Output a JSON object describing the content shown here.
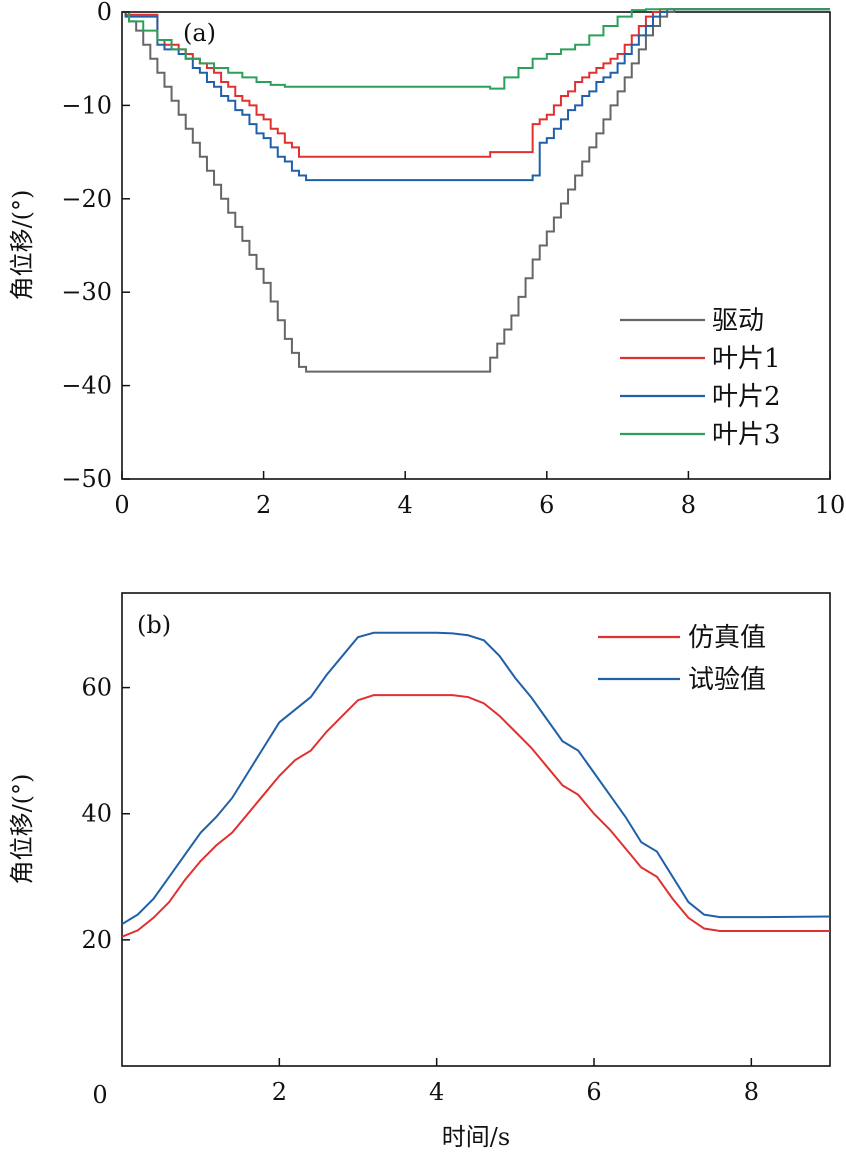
{
  "chart_data": [
    {
      "type": "line",
      "panel_label": "(a)",
      "xlabel": "",
      "ylabel": "角位移/(°)",
      "xlim": [
        0,
        10
      ],
      "ylim": [
        -50,
        0
      ],
      "xticks": [
        0,
        2,
        4,
        6,
        8,
        10
      ],
      "yticks": [
        0,
        -10,
        -20,
        -30,
        -40,
        -50
      ],
      "ytick_labels": [
        "0",
        "−10",
        "−20",
        "−30",
        "−40",
        "−50"
      ],
      "legend_position": "lower-right",
      "series": [
        {
          "name": "驱动",
          "color": "#666666",
          "step": true,
          "x": [
            0,
            0.1,
            0.2,
            0.3,
            0.4,
            0.5,
            0.6,
            0.7,
            0.8,
            0.9,
            1.0,
            1.1,
            1.2,
            1.3,
            1.4,
            1.5,
            1.6,
            1.7,
            1.8,
            1.9,
            2.0,
            2.1,
            2.2,
            2.3,
            2.4,
            2.5,
            2.6,
            5.15,
            5.2,
            5.3,
            5.4,
            5.5,
            5.6,
            5.7,
            5.8,
            5.9,
            6.0,
            6.1,
            6.2,
            6.3,
            6.4,
            6.5,
            6.6,
            6.7,
            6.8,
            6.9,
            7.0,
            7.1,
            7.2,
            7.3,
            7.4,
            7.5,
            7.6,
            7.7,
            7.8,
            10
          ],
          "y": [
            0,
            -1,
            -2,
            -3.5,
            -5,
            -6.5,
            -8,
            -9.5,
            -11,
            -12.5,
            -14,
            -15.5,
            -17,
            -18.5,
            -20,
            -21.5,
            -23,
            -24.5,
            -26,
            -27.5,
            -29,
            -31,
            -33,
            -35,
            -36.5,
            -38,
            -38.5,
            -38.5,
            -37,
            -35.5,
            -34,
            -32.5,
            -30.5,
            -28.5,
            -26.5,
            -25,
            -23.5,
            -22,
            -20.5,
            -19,
            -17.5,
            -16,
            -14.5,
            -13,
            -11.5,
            -10,
            -8.5,
            -7,
            -5.5,
            -4,
            -2.5,
            -1.5,
            -0.5,
            0,
            0.3,
            0.3
          ]
        },
        {
          "name": "叶片1",
          "color": "#e03030",
          "step": true,
          "x": [
            0,
            0.05,
            0.5,
            0.6,
            0.8,
            0.9,
            1.0,
            1.1,
            1.2,
            1.3,
            1.4,
            1.5,
            1.6,
            1.7,
            1.8,
            1.9,
            2.0,
            2.1,
            2.2,
            2.3,
            2.4,
            2.5,
            2.6,
            5.1,
            5.2,
            5.8,
            5.9,
            6.0,
            6.1,
            6.2,
            6.3,
            6.4,
            6.5,
            6.6,
            6.7,
            6.8,
            6.9,
            7.0,
            7.1,
            7.2,
            7.3,
            7.4,
            7.5,
            7.6,
            7.7,
            7.8,
            10
          ],
          "y": [
            0,
            -0.3,
            -3,
            -3.5,
            -4,
            -4.5,
            -5,
            -5.5,
            -6,
            -6.5,
            -7.5,
            -8,
            -9,
            -9.5,
            -10,
            -11,
            -11.5,
            -12.5,
            -13,
            -14,
            -14.5,
            -15.5,
            -15.5,
            -15.5,
            -15,
            -12,
            -11.5,
            -11,
            -10,
            -9,
            -8.5,
            -7.5,
            -7,
            -6.5,
            -6,
            -5.5,
            -5,
            -4.5,
            -3.5,
            -2.5,
            -1.5,
            -0.5,
            0,
            0.3,
            0.3,
            0.3,
            0.3
          ]
        },
        {
          "name": "叶片2",
          "color": "#2060a8",
          "step": true,
          "x": [
            0,
            0.05,
            0.5,
            0.6,
            0.8,
            0.9,
            1.0,
            1.1,
            1.2,
            1.3,
            1.4,
            1.5,
            1.6,
            1.7,
            1.8,
            1.9,
            2.0,
            2.1,
            2.2,
            2.3,
            2.4,
            2.5,
            2.6,
            5.2,
            5.8,
            5.9,
            6.0,
            6.1,
            6.2,
            6.3,
            6.4,
            6.5,
            6.6,
            6.7,
            6.8,
            6.9,
            7.0,
            7.1,
            7.2,
            7.3,
            7.4,
            7.5,
            7.6,
            7.7,
            7.8,
            10
          ],
          "y": [
            0,
            -0.5,
            -3.5,
            -4,
            -4.5,
            -5,
            -6,
            -6.5,
            -7.5,
            -8,
            -9,
            -9.5,
            -10.5,
            -11,
            -12,
            -13,
            -13.5,
            -14.5,
            -15.5,
            -16,
            -17,
            -17.5,
            -18,
            -18,
            -17.5,
            -14,
            -13.5,
            -12.5,
            -11.5,
            -10.5,
            -10,
            -9,
            -8.5,
            -7.5,
            -7,
            -6.5,
            -5.5,
            -4.5,
            -3.5,
            -2.5,
            -1.5,
            -0.5,
            0,
            0.3,
            0.3,
            0.3
          ]
        },
        {
          "name": "叶片3",
          "color": "#2aa05a",
          "step": true,
          "x": [
            0,
            0.1,
            0.3,
            0.5,
            0.7,
            0.9,
            1.1,
            1.3,
            1.5,
            1.7,
            1.9,
            2.1,
            2.3,
            2.5,
            5.2,
            5.4,
            5.6,
            5.8,
            6.0,
            6.2,
            6.4,
            6.6,
            6.8,
            7.0,
            7.2,
            7.4,
            7.6,
            10
          ],
          "y": [
            0,
            -1,
            -2,
            -3,
            -4,
            -5,
            -5.5,
            -6,
            -6.5,
            -7,
            -7.5,
            -7.8,
            -8,
            -8,
            -8.2,
            -7,
            -6,
            -5,
            -4.5,
            -4,
            -3.5,
            -2.5,
            -1.5,
            -0.5,
            0.2,
            0.3,
            0.3,
            0.3
          ]
        }
      ]
    },
    {
      "type": "line",
      "panel_label": "(b)",
      "xlabel": "时间/s",
      "ylabel": "角位移/(°)",
      "xlim": [
        0,
        9
      ],
      "ylim": [
        0,
        75
      ],
      "xticks": [
        2,
        4,
        6,
        8
      ],
      "xtick_origin_label": "0",
      "yticks": [
        20,
        40,
        60
      ],
      "legend_position": "top-right",
      "series": [
        {
          "name": "仿真值",
          "color": "#e03030",
          "x": [
            0,
            0.2,
            0.4,
            0.6,
            0.8,
            1.0,
            1.2,
            1.4,
            1.6,
            1.8,
            2.0,
            2.2,
            2.4,
            2.6,
            2.8,
            3.0,
            3.2,
            3.4,
            3.6,
            3.8,
            4.0,
            4.2,
            4.4,
            4.6,
            4.8,
            5.0,
            5.2,
            5.4,
            5.6,
            5.8,
            6.0,
            6.2,
            6.4,
            6.6,
            6.8,
            7.0,
            7.2,
            7.4,
            7.6,
            7.8,
            8.0,
            9.0
          ],
          "y": [
            20.5,
            21.5,
            23.5,
            26,
            29.5,
            32.5,
            35,
            37,
            40,
            43,
            46,
            48.5,
            50,
            53,
            55.5,
            58,
            58.8,
            58.8,
            58.8,
            58.8,
            58.8,
            58.8,
            58.5,
            57.5,
            55.5,
            53,
            50.5,
            47.5,
            44.5,
            43,
            40,
            37.5,
            34.5,
            31.5,
            30,
            26.5,
            23.5,
            21.8,
            21.4,
            21.4,
            21.4,
            21.4
          ]
        },
        {
          "name": "试验值",
          "color": "#2060a8",
          "x": [
            0,
            0.2,
            0.4,
            0.6,
            0.8,
            1.0,
            1.2,
            1.4,
            1.6,
            1.8,
            2.0,
            2.2,
            2.4,
            2.6,
            2.8,
            3.0,
            3.2,
            3.4,
            3.6,
            3.8,
            4.0,
            4.2,
            4.4,
            4.6,
            4.8,
            5.0,
            5.2,
            5.4,
            5.6,
            5.8,
            6.0,
            6.2,
            6.4,
            6.6,
            6.8,
            7.0,
            7.2,
            7.4,
            7.6,
            7.8,
            8.0,
            9.0
          ],
          "y": [
            22.5,
            24,
            26.5,
            30,
            33.5,
            37,
            39.5,
            42.5,
            46.5,
            50.5,
            54.5,
            56.5,
            58.5,
            62,
            65,
            68,
            68.7,
            68.7,
            68.7,
            68.7,
            68.7,
            68.6,
            68.3,
            67.5,
            65,
            61.5,
            58.5,
            55,
            51.5,
            50,
            46.5,
            43,
            39.5,
            35.5,
            34,
            30,
            26,
            24,
            23.6,
            23.6,
            23.6,
            23.7
          ]
        }
      ]
    }
  ]
}
